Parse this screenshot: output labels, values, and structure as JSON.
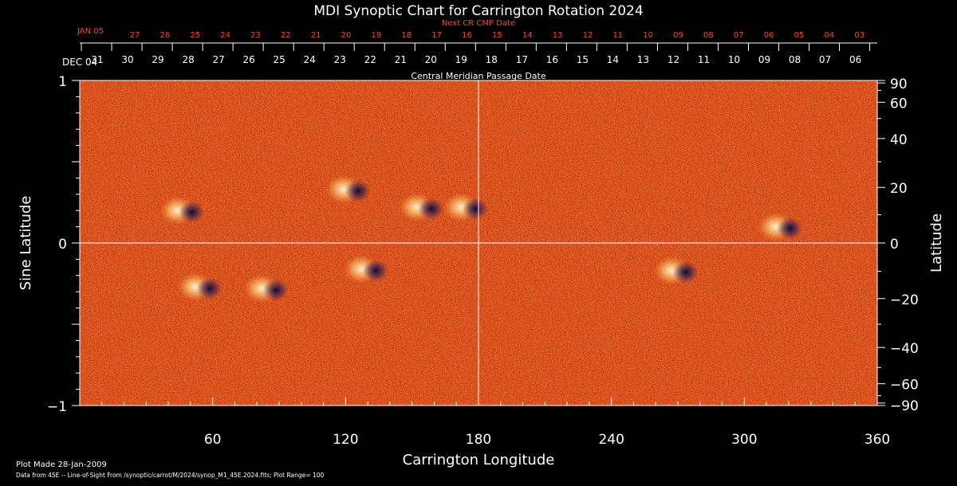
{
  "chart_data": {
    "type": "heatmap",
    "title": "MDI Synoptic Chart for Carrington Rotation 2024",
    "xlabel": "Carrington Longitude",
    "ylabel_left": "Sine Latitude",
    "ylabel_right": "Latitude",
    "xlim": [
      0,
      360
    ],
    "ylim": [
      -1,
      1
    ],
    "x_ticks": [
      60,
      120,
      180,
      240,
      300,
      360
    ],
    "y_ticks_left": [
      {
        "v": 1,
        "label": "1"
      },
      {
        "v": 0,
        "label": "0"
      },
      {
        "v": -1,
        "label": "−1"
      }
    ],
    "y_ticks_right_deg": [
      {
        "deg": 90,
        "label": "90"
      },
      {
        "deg": 60,
        "label": "60"
      },
      {
        "deg": 40,
        "label": "40"
      },
      {
        "deg": 20,
        "label": "20"
      },
      {
        "deg": 0,
        "label": "0"
      },
      {
        "deg": -20,
        "label": "−20"
      },
      {
        "deg": -40,
        "label": "−40"
      },
      {
        "deg": -60,
        "label": "−60"
      },
      {
        "deg": -90,
        "label": "−90"
      }
    ],
    "grid": "lines at longitude 180 and latitude 0",
    "top_axis_label": "Central Meridian Passage Date",
    "top_axis_start_label": "DEC 04",
    "top_axis_dates": [
      "31",
      "30",
      "29",
      "28",
      "27",
      "26",
      "25",
      "24",
      "23",
      "22",
      "21",
      "20",
      "19",
      "18",
      "17",
      "16",
      "15",
      "14",
      "13",
      "12",
      "11",
      "10",
      "09",
      "08",
      "07",
      "06"
    ],
    "next_axis_label": "Next CR CMP Date",
    "next_axis_start_label": "JAN 05",
    "next_axis_dates": [
      "27",
      "26",
      "25",
      "24",
      "23",
      "22",
      "21",
      "20",
      "19",
      "18",
      "17",
      "16",
      "15",
      "14",
      "13",
      "12",
      "11",
      "10",
      "09",
      "08",
      "07",
      "06",
      "05",
      "04",
      "03"
    ],
    "color_range": 100,
    "active_regions": [
      {
        "lon": 47,
        "sinlat": 0.2,
        "polarity": "mixed"
      },
      {
        "lon": 55,
        "sinlat": -0.27,
        "polarity": "mixed"
      },
      {
        "lon": 85,
        "sinlat": -0.28,
        "polarity": "mixed"
      },
      {
        "lon": 122,
        "sinlat": 0.33,
        "polarity": "mixed"
      },
      {
        "lon": 130,
        "sinlat": -0.16,
        "polarity": "mixed"
      },
      {
        "lon": 155,
        "sinlat": 0.22,
        "polarity": "mixed"
      },
      {
        "lon": 175,
        "sinlat": 0.22,
        "polarity": "mixed"
      },
      {
        "lon": 270,
        "sinlat": -0.17,
        "polarity": "mixed"
      },
      {
        "lon": 317,
        "sinlat": 0.1,
        "polarity": "mixed"
      }
    ],
    "colors": {
      "background": "#000000",
      "field": "#e8541c",
      "positive": "#fff3b0",
      "negative": "#1a1050",
      "next_axis": "#ff4422",
      "grid": "#ffffff"
    }
  },
  "footer": {
    "plot_made": "Plot Made 28-Jan-2009",
    "source": "Data from 45E -- Line-of-Sight From /synoptic/carrot/M/2024/synop_M1_45E.2024.fits; Plot Range= 100"
  }
}
